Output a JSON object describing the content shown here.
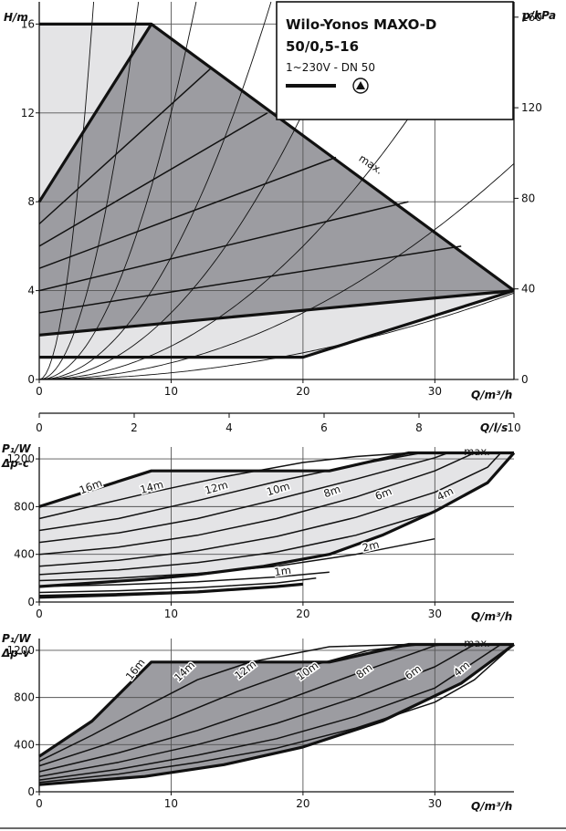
{
  "chart_data": [
    {
      "id": "hq",
      "type": "line",
      "xlabel": "Q/m³/h",
      "ylabel": "H/m",
      "y2label": "p/kPa",
      "xlim": [
        0,
        36
      ],
      "ylim": [
        0,
        17
      ],
      "x_ticks": [
        0,
        10,
        20,
        30
      ],
      "y_ticks": [
        0,
        4,
        8,
        12,
        16
      ],
      "y2_ticks": [
        0,
        40,
        80,
        120,
        160
      ],
      "grid": true,
      "legend": {
        "title_line1": "Wilo-Yonos MAXO-D",
        "title_line2": "50/0,5-16",
        "subtitle": "1~230V - DN 50",
        "position": "top-right"
      },
      "max_label": "max.",
      "regions": {
        "operating_envelope": [
          [
            0,
            16
          ],
          [
            8.5,
            16
          ],
          [
            36,
            4
          ],
          [
            20,
            1
          ],
          [
            0,
            1
          ]
        ],
        "dp_v_region": [
          [
            0,
            8
          ],
          [
            8.5,
            16
          ],
          [
            36,
            4
          ],
          [
            0,
            2
          ]
        ]
      },
      "series": [
        {
          "role": "max",
          "x": [
            8.5,
            36
          ],
          "y": [
            16,
            4
          ]
        },
        {
          "role": "min",
          "x": [
            0,
            20,
            36
          ],
          "y": [
            1,
            1,
            4
          ]
        },
        {
          "role": "dpv",
          "x": [
            0,
            8.5
          ],
          "y": [
            8,
            16
          ]
        },
        {
          "role": "dpv",
          "x": [
            0,
            13
          ],
          "y": [
            7,
            14
          ]
        },
        {
          "role": "dpv",
          "x": [
            0,
            17.3
          ],
          "y": [
            6,
            12
          ]
        },
        {
          "role": "dpv",
          "x": [
            0,
            22.5
          ],
          "y": [
            5,
            10
          ]
        },
        {
          "role": "dpv",
          "x": [
            0,
            28
          ],
          "y": [
            4,
            8
          ]
        },
        {
          "role": "dpv",
          "x": [
            0,
            32
          ],
          "y": [
            3,
            6
          ]
        },
        {
          "role": "dpv",
          "x": [
            0,
            36
          ],
          "y": [
            2,
            4
          ]
        }
      ],
      "system_curves_k": [
        1.0,
        0.3,
        0.12,
        0.055,
        0.03,
        0.015,
        0.0075,
        0.003
      ]
    },
    {
      "id": "q_ls_axis",
      "type": "axis",
      "xlabel": "Q/l/s",
      "xlim": [
        0,
        10
      ],
      "x_ticks": [
        0,
        2,
        4,
        6,
        8,
        10
      ]
    },
    {
      "id": "p1_dpc",
      "type": "line",
      "title": "Δp-c",
      "ylabel": "P₁/W",
      "xlabel": "Q/m³/h",
      "xlim": [
        0,
        36
      ],
      "ylim": [
        0,
        1300
      ],
      "x_ticks": [
        0,
        10,
        20,
        30
      ],
      "y_ticks": [
        0,
        400,
        800,
        1200
      ],
      "grid": true,
      "max_label": "max.",
      "envelope": [
        [
          0,
          800
        ],
        [
          8.5,
          1100
        ],
        [
          22,
          1100
        ],
        [
          28,
          1250
        ],
        [
          36,
          1250
        ],
        [
          34,
          1000
        ],
        [
          30,
          760
        ],
        [
          26,
          560
        ],
        [
          22,
          400
        ],
        [
          17,
          300
        ],
        [
          12,
          230
        ],
        [
          8,
          190
        ],
        [
          4,
          160
        ],
        [
          0,
          130
        ]
      ],
      "curves": [
        {
          "label": "16m",
          "pts": [
            [
              0,
              800
            ],
            [
              8.5,
              1100
            ]
          ],
          "lx": 4,
          "ly": 940,
          "rot": -21
        },
        {
          "label": "14m",
          "pts": [
            [
              0,
              700
            ],
            [
              5,
              830
            ],
            [
              8.5,
              920
            ],
            [
              14,
              1050
            ],
            [
              20,
              1170
            ],
            [
              24,
              1220
            ],
            [
              28,
              1250
            ]
          ],
          "lx": 8.6,
          "ly": 935,
          "rot": -15
        },
        {
          "label": "12m",
          "pts": [
            [
              0,
              600
            ],
            [
              6,
              700
            ],
            [
              12,
              850
            ],
            [
              18,
              1010
            ],
            [
              24,
              1150
            ],
            [
              29,
              1250
            ]
          ],
          "lx": 13.5,
          "ly": 930,
          "rot": -16
        },
        {
          "label": "10m",
          "pts": [
            [
              0,
              500
            ],
            [
              6,
              580
            ],
            [
              12,
              700
            ],
            [
              18,
              860
            ],
            [
              24,
              1030
            ],
            [
              30,
              1210
            ],
            [
              31,
              1250
            ]
          ],
          "lx": 18.2,
          "ly": 920,
          "rot": -17
        },
        {
          "label": "8m",
          "pts": [
            [
              0,
              400
            ],
            [
              6,
              460
            ],
            [
              12,
              560
            ],
            [
              18,
              700
            ],
            [
              24,
              880
            ],
            [
              30,
              1100
            ],
            [
              33,
              1250
            ]
          ],
          "lx": 22.3,
          "ly": 900,
          "rot": -20
        },
        {
          "label": "6m",
          "pts": [
            [
              0,
              300
            ],
            [
              6,
              350
            ],
            [
              12,
              430
            ],
            [
              18,
              550
            ],
            [
              24,
              710
            ],
            [
              30,
              920
            ],
            [
              34,
              1130
            ],
            [
              35,
              1250
            ]
          ],
          "lx": 26.2,
          "ly": 880,
          "rot": -22
        },
        {
          "label": "4m",
          "pts": [
            [
              0,
              230
            ],
            [
              6,
              270
            ],
            [
              12,
              330
            ],
            [
              18,
              420
            ],
            [
              24,
              560
            ],
            [
              30,
              760
            ],
            [
              34,
              1000
            ],
            [
              36,
              1250
            ]
          ],
          "lx": 30.9,
          "ly": 880,
          "rot": -27
        },
        {
          "label": "2m",
          "pts": [
            [
              0,
              180
            ],
            [
              6,
              200
            ],
            [
              12,
              240
            ],
            [
              18,
              300
            ],
            [
              24,
              400
            ],
            [
              30,
              530
            ]
          ],
          "lx": 25.2,
          "ly": 440,
          "rot": -14
        },
        {
          "label": "1m",
          "pts": [
            [
              0,
              130
            ],
            [
              6,
              145
            ],
            [
              12,
              170
            ],
            [
              18,
              210
            ],
            [
              22,
              250
            ]
          ],
          "lx": 18.5,
          "ly": 230,
          "rot": -8
        },
        {
          "label": "",
          "pts": [
            [
              0,
              80
            ],
            [
              6,
              95
            ],
            [
              12,
              120
            ],
            [
              18,
              160
            ],
            [
              21,
              200
            ]
          ],
          "lx": 0,
          "ly": 0,
          "rot": 0
        },
        {
          "label": "",
          "pts": [
            [
              0,
              55
            ],
            [
              6,
              70
            ],
            [
              12,
              90
            ],
            [
              16,
              110
            ]
          ],
          "lx": 0,
          "ly": 0,
          "rot": 0
        }
      ],
      "bold": [
        {
          "pts": [
            [
              0,
              800
            ],
            [
              8.5,
              1100
            ],
            [
              22,
              1100
            ],
            [
              28,
              1250
            ],
            [
              36,
              1250
            ]
          ]
        },
        {
          "pts": [
            [
              36,
              1250
            ],
            [
              34,
              1000
            ],
            [
              30,
              760
            ],
            [
              26,
              560
            ],
            [
              22,
              400
            ],
            [
              17,
              300
            ],
            [
              12,
              230
            ],
            [
              8,
              190
            ],
            [
              4,
              160
            ],
            [
              0,
              130
            ]
          ]
        },
        {
          "pts": [
            [
              0,
              40
            ],
            [
              6,
              60
            ],
            [
              12,
              85
            ],
            [
              18,
              130
            ],
            [
              20,
              150
            ]
          ]
        }
      ]
    },
    {
      "id": "p1_dpv",
      "type": "line",
      "title": "Δp-v",
      "ylabel": "P₁/W",
      "xlabel": "Q/m³/h",
      "xlim": [
        0,
        36
      ],
      "ylim": [
        0,
        1300
      ],
      "x_ticks": [
        0,
        10,
        20,
        30
      ],
      "y_ticks": [
        0,
        400,
        800,
        1200
      ],
      "grid": true,
      "max_label": "max.",
      "envelope": [
        [
          0,
          300
        ],
        [
          4,
          600
        ],
        [
          8.5,
          1100
        ],
        [
          22,
          1100
        ],
        [
          28,
          1250
        ],
        [
          36,
          1250
        ],
        [
          32,
          920
        ],
        [
          26,
          600
        ],
        [
          20,
          380
        ],
        [
          14,
          230
        ],
        [
          8,
          130
        ],
        [
          0,
          60
        ]
      ],
      "curves": [
        {
          "label": "16m",
          "pts": [
            [
              0,
              300
            ],
            [
              4,
              600
            ],
            [
              8.5,
              1100
            ]
          ],
          "lx": 7.5,
          "ly": 1020,
          "rot": -52
        },
        {
          "label": "14m",
          "pts": [
            [
              0,
              260
            ],
            [
              4,
              480
            ],
            [
              8,
              720
            ],
            [
              12,
              950
            ],
            [
              16,
              1100
            ],
            [
              22,
              1230
            ],
            [
              28,
              1250
            ]
          ],
          "lx": 11.2,
          "ly": 1000,
          "rot": -44
        },
        {
          "label": "12m",
          "pts": [
            [
              0,
              220
            ],
            [
              5,
              400
            ],
            [
              10,
              620
            ],
            [
              15,
              850
            ],
            [
              20,
              1050
            ],
            [
              25,
              1200
            ],
            [
              29,
              1250
            ]
          ],
          "lx": 15.8,
          "ly": 1010,
          "rot": -38
        },
        {
          "label": "10m",
          "pts": [
            [
              0,
              170
            ],
            [
              6,
              330
            ],
            [
              12,
              520
            ],
            [
              18,
              750
            ],
            [
              24,
              1000
            ],
            [
              30,
              1240
            ],
            [
              31,
              1250
            ]
          ],
          "lx": 20.5,
          "ly": 1000,
          "rot": -36
        },
        {
          "label": "8m",
          "pts": [
            [
              0,
              130
            ],
            [
              6,
              250
            ],
            [
              12,
              400
            ],
            [
              18,
              580
            ],
            [
              24,
              800
            ],
            [
              30,
              1060
            ],
            [
              33,
              1250
            ]
          ],
          "lx": 24.8,
          "ly": 1000,
          "rot": -36
        },
        {
          "label": "6m",
          "pts": [
            [
              0,
              100
            ],
            [
              6,
              190
            ],
            [
              12,
              310
            ],
            [
              18,
              450
            ],
            [
              24,
              640
            ],
            [
              30,
              880
            ],
            [
              35,
              1250
            ]
          ],
          "lx": 28.5,
          "ly": 990,
          "rot": -36
        },
        {
          "label": "4m",
          "pts": [
            [
              0,
              80
            ],
            [
              6,
              150
            ],
            [
              12,
              250
            ],
            [
              18,
              370
            ],
            [
              24,
              540
            ],
            [
              30,
              760
            ],
            [
              33,
              950
            ],
            [
              36,
              1250
            ]
          ],
          "lx": 32.2,
          "ly": 1020,
          "rot": -40
        }
      ],
      "bold": [
        {
          "pts": [
            [
              0,
              300
            ],
            [
              4,
              600
            ],
            [
              8.5,
              1100
            ],
            [
              22,
              1100
            ],
            [
              28,
              1250
            ],
            [
              36,
              1250
            ]
          ]
        },
        {
          "pts": [
            [
              36,
              1250
            ],
            [
              32,
              920
            ],
            [
              26,
              600
            ],
            [
              20,
              380
            ],
            [
              14,
              230
            ],
            [
              8,
              130
            ],
            [
              0,
              60
            ]
          ]
        }
      ]
    }
  ]
}
